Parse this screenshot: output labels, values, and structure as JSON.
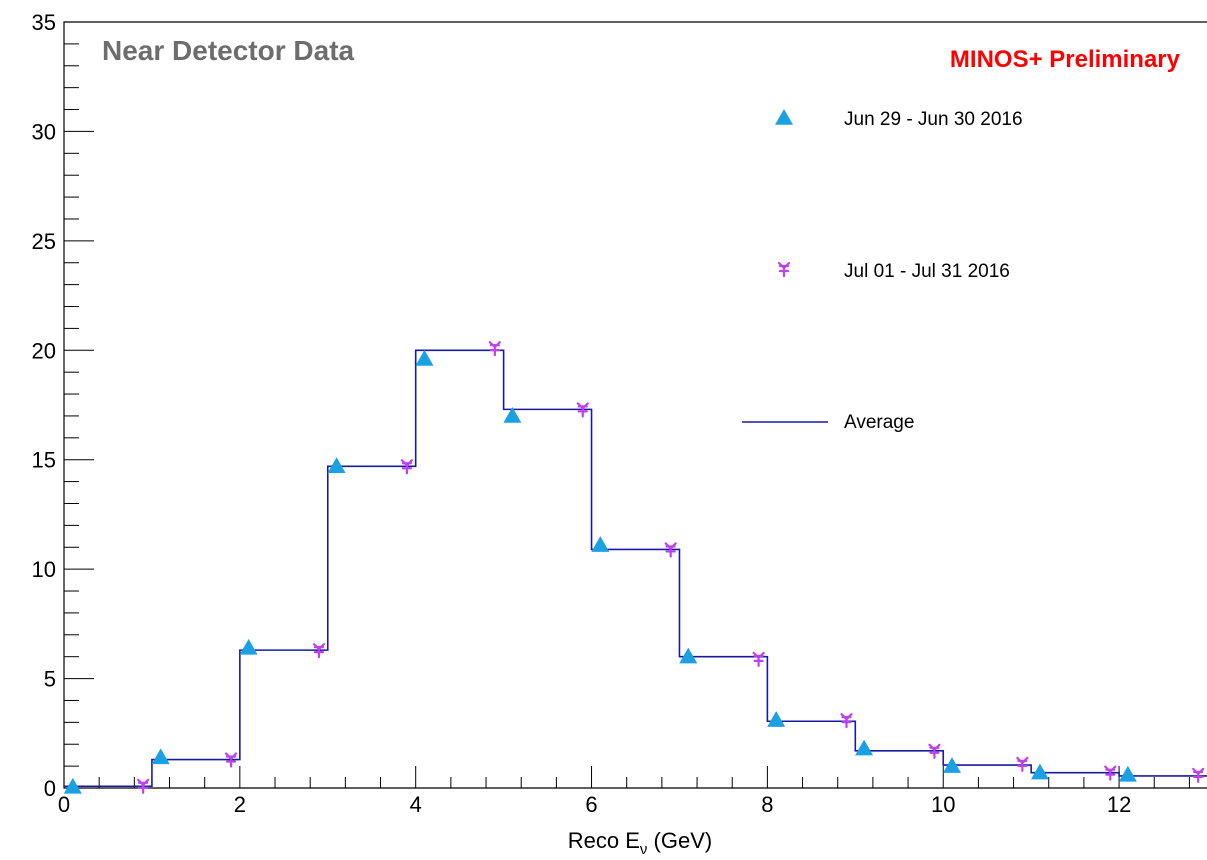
{
  "chart_data": {
    "type": "line",
    "title": "Near Detector Data",
    "annotation": "MINOS+ Preliminary",
    "xlabel_main": "Reco E",
    "xlabel_sub": "ν",
    "xlabel_unit": " (GeV)",
    "ylabel": "",
    "xlim": [
      0,
      13
    ],
    "ylim": [
      0,
      35
    ],
    "x_ticks": [
      0,
      2,
      4,
      6,
      8,
      10,
      12
    ],
    "y_ticks": [
      0,
      5,
      10,
      15,
      20,
      25,
      30,
      35
    ],
    "grid": false,
    "legend_position": "top-right",
    "bin_edges": [
      0,
      1,
      2,
      3,
      4,
      5,
      6,
      7,
      8,
      9,
      10,
      11,
      12,
      13
    ],
    "series": [
      {
        "name": "Jun 29 - Jun 30 2016",
        "marker": "triangle",
        "color": "#1ba1e2",
        "x": [
          0.1,
          1.1,
          2.1,
          3.1,
          4.1,
          5.1,
          6.1,
          7.1,
          8.1,
          9.1,
          10.1,
          11.1,
          12.1
        ],
        "values": [
          0.05,
          1.4,
          6.4,
          14.7,
          19.6,
          17.0,
          11.1,
          6.0,
          3.1,
          1.8,
          1.0,
          0.7,
          0.6
        ]
      },
      {
        "name": "Jul 01 - Jul 31 2016",
        "marker": "star",
        "color": "#c040f0",
        "x": [
          0.9,
          1.9,
          2.9,
          3.9,
          4.9,
          5.9,
          6.9,
          7.9,
          8.9,
          9.9,
          10.9,
          11.9,
          12.9
        ],
        "values": [
          0.1,
          1.3,
          6.3,
          14.7,
          20.1,
          17.3,
          10.9,
          5.9,
          3.1,
          1.7,
          1.1,
          0.7,
          0.6
        ]
      },
      {
        "name": "Average",
        "marker": "step",
        "color": "#1a1aa0",
        "values": [
          0.08,
          1.3,
          6.3,
          14.7,
          20.0,
          17.3,
          10.9,
          6.0,
          3.05,
          1.7,
          1.05,
          0.7,
          0.55
        ]
      }
    ]
  }
}
